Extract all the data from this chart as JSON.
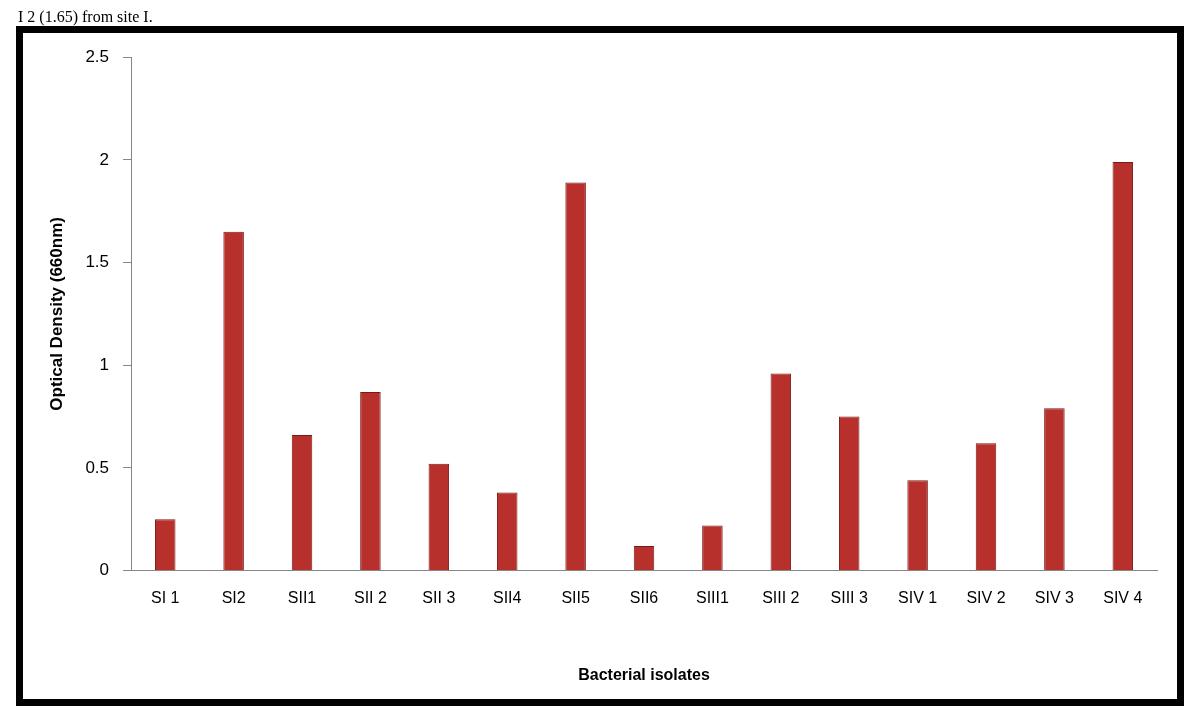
{
  "chart_data": {
    "type": "bar",
    "ylabel": "Optical Density (660nm)",
    "xlabel": "Bacterial isolates",
    "categories": [
      "SI 1",
      "SI2",
      "SII1",
      "SII 2",
      "SII 3",
      "SII4",
      "SII5",
      "SII6",
      "SIII1",
      "SIII 2",
      "SIII 3",
      "SIV 1",
      "SIV 2",
      "SIV 3",
      "SIV 4"
    ],
    "values": [
      0.25,
      1.65,
      0.66,
      0.87,
      0.52,
      0.38,
      1.89,
      0.12,
      0.22,
      0.96,
      0.75,
      0.44,
      0.62,
      0.79,
      1.99
    ],
    "color": "#b8302c",
    "ylim": [
      0,
      2.5
    ],
    "yticks": [
      0,
      0.5,
      1,
      1.5,
      2,
      2.5
    ],
    "grid": false,
    "legend": false,
    "annotations": [
      "I 2 (1.65) from site I."
    ]
  }
}
